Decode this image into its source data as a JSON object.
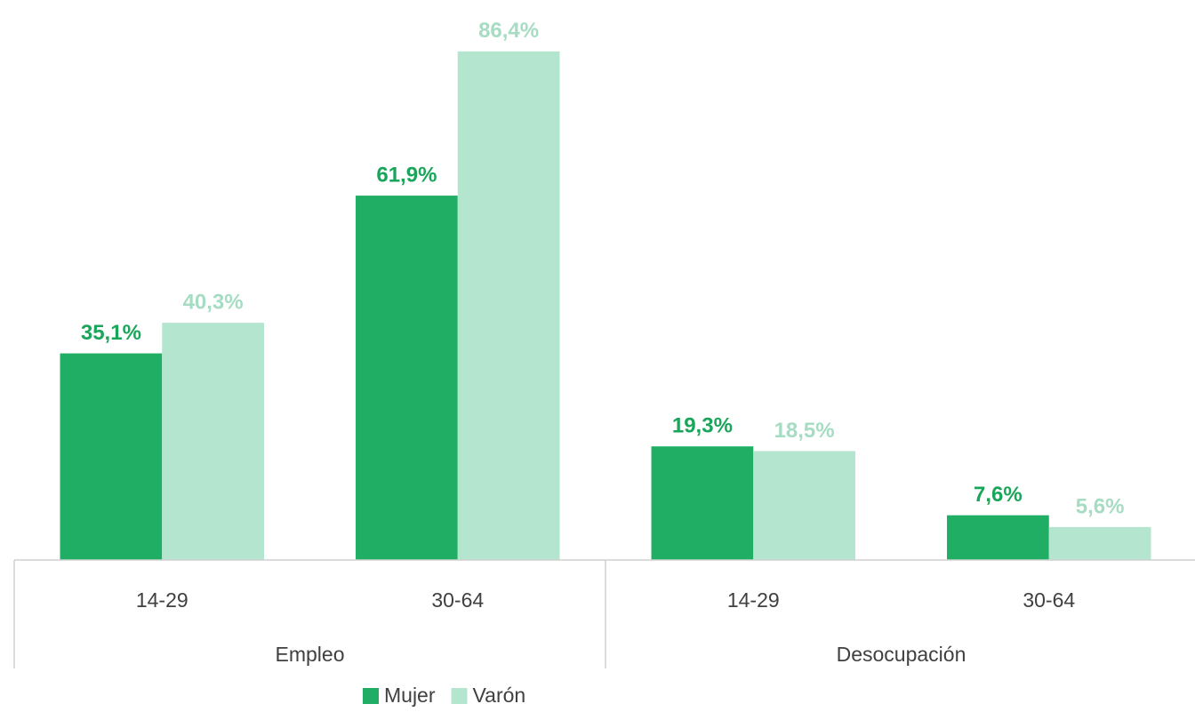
{
  "chart_data": {
    "type": "bar",
    "categories": [
      "14-29",
      "30-64",
      "14-29",
      "30-64"
    ],
    "groups": [
      "Empleo",
      "Desocupación"
    ],
    "series": [
      {
        "name": "Mujer",
        "color": "#1fae63",
        "values": [
          35.1,
          61.9,
          19.3,
          7.6
        ],
        "value_labels": [
          "35,1%",
          "61,9%",
          "19,3%",
          "7,6%"
        ]
      },
      {
        "name": "Varón",
        "color": "#b3e5cf",
        "values": [
          40.3,
          86.4,
          18.5,
          5.6
        ],
        "value_labels": [
          "40,3%",
          "86,4%",
          "18,5%",
          "5,6%"
        ]
      }
    ],
    "ylim": [
      0,
      90
    ],
    "legend": "bottom"
  }
}
